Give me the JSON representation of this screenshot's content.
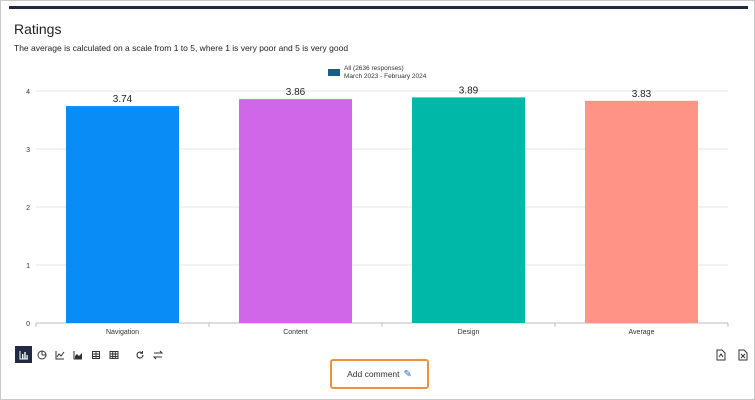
{
  "header": {
    "title": "Ratings",
    "subtitle": "The average is calculated on a scale from 1 to 5, where 1 is very poor and 5 is very good"
  },
  "chart_data": {
    "type": "bar",
    "categories": [
      "Navigation",
      "Content",
      "Design",
      "Average"
    ],
    "series": [
      {
        "name": "All (2636 responses)",
        "values": [
          3.74,
          3.86,
          3.89,
          3.83
        ]
      }
    ],
    "data_labels": [
      "3.74",
      "3.86",
      "3.89",
      "3.83"
    ],
    "bar_colors": [
      "#0a8cf7",
      "#d066e8",
      "#00b8a8",
      "#ff9385"
    ],
    "legend": {
      "line1": "All (2636 responses)",
      "line2": "March 2023 - February 2024",
      "color": "#1a5f8a",
      "placement": "top-center"
    },
    "yticks": [
      "0",
      "1",
      "2",
      "3",
      "4"
    ],
    "ylim": [
      0,
      4
    ],
    "grid": true
  },
  "toolbar": {
    "icons": [
      "bar-chart-icon",
      "pie-chart-icon",
      "line-chart-icon",
      "area-chart-icon",
      "table-icon",
      "grid-table-icon",
      "reset-icon",
      "swap-icon"
    ],
    "export_icons": [
      "export-pdf-icon",
      "export-excel-icon"
    ]
  },
  "comment": {
    "label": "Add comment"
  }
}
